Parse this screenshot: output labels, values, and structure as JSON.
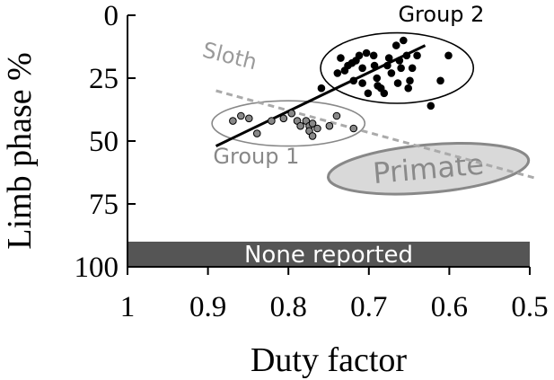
{
  "chart_data": {
    "type": "scatter",
    "title": "",
    "xlabel": "Duty factor",
    "ylabel": "Limb phase %",
    "xlim": [
      1,
      0.5
    ],
    "ylim": [
      0,
      100
    ],
    "x_axis_reversed": true,
    "y_axis_inverted": true,
    "xticks": [
      1,
      0.9,
      0.8,
      0.7,
      0.6,
      0.5
    ],
    "xtick_labels": [
      "1",
      "0.9",
      "0.8",
      "0.7",
      "0.6",
      "0.5"
    ],
    "yticks": [
      0,
      25,
      50,
      75,
      100
    ],
    "ytick_labels": [
      "0",
      "25",
      "50",
      "75",
      "100"
    ],
    "grid": false,
    "series": [
      {
        "name": "Group 1",
        "color": "#888888",
        "points": [
          [
            0.869,
            42
          ],
          [
            0.859,
            40
          ],
          [
            0.849,
            41
          ],
          [
            0.839,
            47
          ],
          [
            0.821,
            42
          ],
          [
            0.806,
            41
          ],
          [
            0.796,
            39
          ],
          [
            0.789,
            42
          ],
          [
            0.785,
            44
          ],
          [
            0.778,
            42
          ],
          [
            0.774,
            44
          ],
          [
            0.774,
            46
          ],
          [
            0.77,
            48
          ],
          [
            0.77,
            43
          ],
          [
            0.764,
            45
          ],
          [
            0.749,
            44
          ],
          [
            0.74,
            40
          ],
          [
            0.719,
            45
          ]
        ]
      },
      {
        "name": "Group 2",
        "color": "#000000",
        "points": [
          [
            0.739,
            23
          ],
          [
            0.735,
            17
          ],
          [
            0.73,
            22
          ],
          [
            0.726,
            20
          ],
          [
            0.721,
            19
          ],
          [
            0.719,
            26
          ],
          [
            0.716,
            18
          ],
          [
            0.712,
            16
          ],
          [
            0.708,
            21
          ],
          [
            0.708,
            27
          ],
          [
            0.703,
            15
          ],
          [
            0.701,
            31
          ],
          [
            0.694,
            16
          ],
          [
            0.693,
            20
          ],
          [
            0.69,
            25
          ],
          [
            0.689,
            28
          ],
          [
            0.685,
            29
          ],
          [
            0.681,
            31
          ],
          [
            0.677,
            20
          ],
          [
            0.675,
            17
          ],
          [
            0.672,
            23
          ],
          [
            0.666,
            12
          ],
          [
            0.664,
            27
          ],
          [
            0.662,
            18
          ],
          [
            0.66,
            21
          ],
          [
            0.657,
            10
          ],
          [
            0.653,
            16
          ],
          [
            0.651,
            29
          ],
          [
            0.649,
            26
          ],
          [
            0.646,
            21
          ],
          [
            0.64,
            16
          ],
          [
            0.623,
            36
          ],
          [
            0.611,
            26
          ],
          [
            0.601,
            16
          ],
          [
            0.759,
            29
          ]
        ]
      }
    ],
    "trend_line": {
      "color": "#000000",
      "from": [
        0.89,
        52
      ],
      "to": [
        0.63,
        12
      ]
    },
    "dashed_line": {
      "color": "#aaaaaa",
      "from": [
        0.89,
        30
      ],
      "to": [
        0.49,
        65
      ]
    },
    "ellipses": [
      {
        "label": "Group 1",
        "cx": 0.8,
        "cy": 43,
        "rx": 0.095,
        "ry": 9,
        "fill": "none",
        "stroke": "#888888"
      },
      {
        "label": "Group 2",
        "cx": 0.665,
        "cy": 21,
        "rx": 0.095,
        "ry": 14,
        "fill": "none",
        "stroke": "#000000"
      },
      {
        "label": "Primate",
        "cx": 0.626,
        "cy": 61,
        "rx": 0.125,
        "ry": 9.5,
        "fill": "#d9d9d9",
        "stroke": "#888888",
        "rotate": -5
      }
    ],
    "band": {
      "label": "None reported",
      "from": 90,
      "to": 100,
      "color": "#555555"
    },
    "annotations": [
      {
        "text": "Group 2",
        "x": 0.61,
        "y": 2.5,
        "color": "#000000"
      },
      {
        "text": "Group 1",
        "x": 0.84,
        "y": 59,
        "color": "#888888"
      },
      {
        "text": "Sloth",
        "x": 0.875,
        "y": 19,
        "color": "#9a9a9a",
        "rotate": 14
      }
    ]
  }
}
